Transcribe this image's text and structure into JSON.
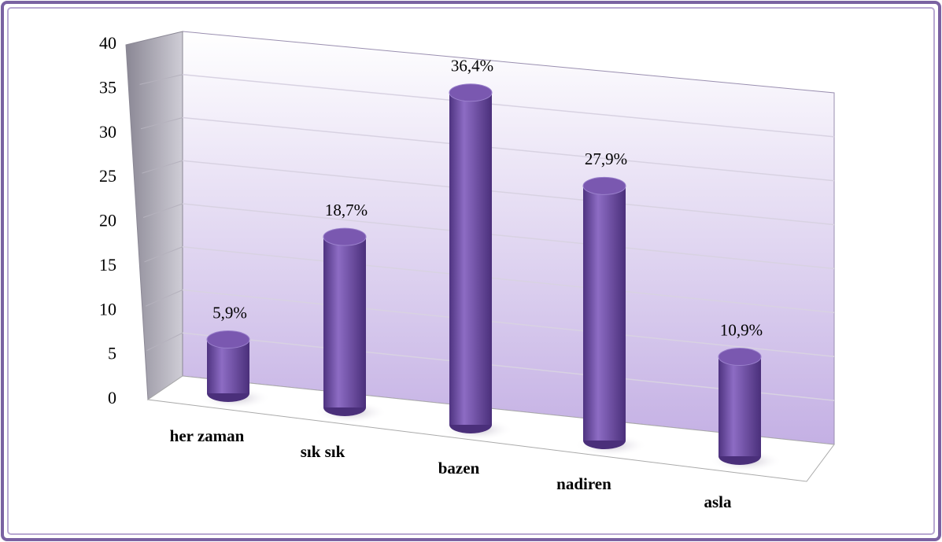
{
  "chart_data": {
    "type": "bar",
    "categories": [
      "her zaman",
      "sık sık",
      "bazen",
      "nadiren",
      "asla"
    ],
    "values": [
      5.9,
      18.7,
      36.4,
      27.9,
      10.9
    ],
    "value_labels": [
      "5,9%",
      "18,7%",
      "36,4%",
      "27,9%",
      "10,9%"
    ],
    "color": "#7a58b0",
    "ylim": [
      0,
      40
    ],
    "yticks": [
      0,
      5,
      10,
      15,
      20,
      25,
      30,
      35,
      40
    ],
    "grid": true
  }
}
